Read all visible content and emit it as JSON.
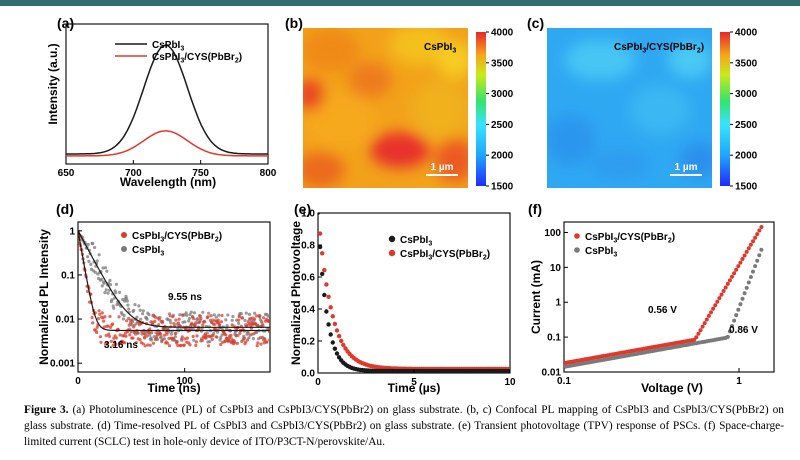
{
  "colors": {
    "black": "#1a1a1a",
    "red": "#e0392b",
    "gray": "#7a7a7a",
    "accent": "#2f6f6f"
  },
  "caption": {
    "label": "Figure 3.",
    "text": "(a) Photoluminescence (PL) of CsPbI3 and CsPbI3/CYS(PbBr2) on glass substrate. (b, c) Confocal PL mapping of CsPbI3 and CsPbI3/CYS(PbBr2) on glass substrate. (d) Time-resolved PL of CsPbI3 and CsPbI3/CYS(PbBr2) on glass substrate. (e) Transient photovoltage (TPV) response of PSCs. (f) Space-charge-limited current (SCLC) test in hole-only device of ITO/P3CT-N/perovskite/Au."
  },
  "chart_data": [
    {
      "panel": "(a)",
      "type": "line",
      "xlabel": "Wavelength (nm)",
      "ylabel": "Intensity (a.u.)",
      "xlim": [
        650,
        800
      ],
      "ylim": [
        0,
        1.12
      ],
      "xticks": [
        "650",
        "700",
        "750",
        "800"
      ],
      "series": [
        {
          "name": "CsPbI3",
          "legend": "CsPbI",
          "sub": "3",
          "color": "black",
          "center": 724,
          "width": 23,
          "peak": 0.87,
          "base": 0.08
        },
        {
          "name": "CsPbI3/CYS(PbBr2)",
          "legend": "CsPbI",
          "sub": "3",
          "tail": "/CYS(PbBr",
          "sub2": "2",
          "end": ")",
          "color": "red",
          "center": 724,
          "width": 23,
          "peak": 0.2,
          "base": 0.065
        }
      ]
    },
    {
      "panel": "(b)",
      "type": "heatmap",
      "label": "CsPbI",
      "label_sub": "3",
      "scale": "1 µm",
      "clim": [
        1500,
        4000
      ],
      "colorbar_ticks": [
        "4000",
        "3500",
        "3000",
        "2500",
        "2000",
        "1500"
      ],
      "level": "high"
    },
    {
      "panel": "(c)",
      "type": "heatmap",
      "label": "CsPbI",
      "label_sub": "3",
      "label_tail": "/CYS(PbBr",
      "label_sub2": "2",
      "label_end": ")",
      "scale": "1 µm",
      "clim": [
        1500,
        4000
      ],
      "colorbar_ticks": [
        "4000",
        "3500",
        "3000",
        "2500",
        "2000",
        "1500"
      ],
      "level": "low"
    },
    {
      "panel": "(d)",
      "type": "scatter",
      "xlabel": "Time (ns)",
      "ylabel": "Normalized PL Intensity",
      "xlim": [
        0,
        180
      ],
      "ylim_log10": [
        -3.2,
        0.2
      ],
      "xticks": [
        "0",
        "100"
      ],
      "yticks": [
        "1",
        "0.1",
        "0.01",
        "0.001"
      ],
      "annotations": [
        "9.55 ns",
        "3.16 ns"
      ],
      "series": [
        {
          "name": "CsPbI3/CYS(PbBr2)",
          "color": "red",
          "tau": 3.16,
          "floor": 0.0055,
          "marker": "circle"
        },
        {
          "name": "CsPbI3",
          "color": "gray",
          "tau": 9.55,
          "floor": 0.0065,
          "marker": "circle"
        }
      ]
    },
    {
      "panel": "(e)",
      "type": "scatter",
      "xlabel": "Time (µs)",
      "ylabel": "Normalized Photovoltage",
      "xlim": [
        0,
        10
      ],
      "ylim": [
        0,
        1.0
      ],
      "xticks": [
        "0",
        "5",
        "10"
      ],
      "yticks": [
        "0.0",
        "0.2",
        "0.4",
        "0.6",
        "0.8",
        "1.0"
      ],
      "series": [
        {
          "name": "CsPbI3",
          "color": "black",
          "tau": 0.45
        },
        {
          "name": "CsPbI3/CYS(PbBr2)",
          "color": "red",
          "tau": 0.7
        }
      ]
    },
    {
      "panel": "(f)",
      "type": "scatter",
      "xlabel": "Voltage (V)",
      "ylabel": "Current (mA)",
      "xlim_log10": [
        -1,
        0.2
      ],
      "ylim_log10": [
        -2,
        2.3
      ],
      "xticks": [
        "0.1",
        "1"
      ],
      "yticks": [
        "100",
        "10",
        "1",
        "0.1",
        "0.01"
      ],
      "annotations": [
        "0.56 V",
        "0.86 V"
      ],
      "series": [
        {
          "name": "CsPbI3/CYS(PbBr2)",
          "color": "red",
          "vtfl": 0.56
        },
        {
          "name": "CsPbI3",
          "color": "gray",
          "vtfl": 0.86
        }
      ]
    }
  ]
}
